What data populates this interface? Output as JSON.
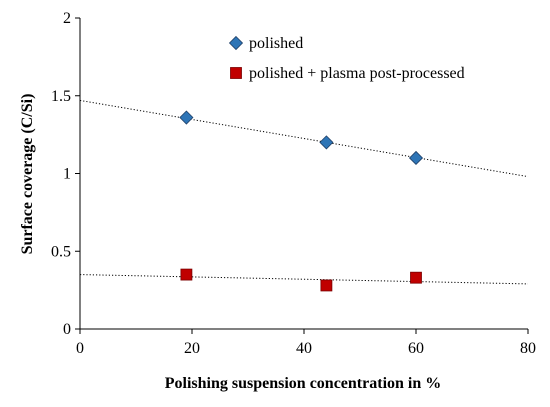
{
  "chart_data": {
    "type": "scatter",
    "xlabel": "Polishing suspension concentration in %",
    "ylabel": "Surface coverage (C/Si)",
    "xlim": [
      0,
      80
    ],
    "ylim": [
      0,
      2
    ],
    "xticks": [
      0,
      20,
      40,
      60,
      80
    ],
    "yticks": [
      0,
      0.5,
      1,
      1.5,
      2
    ],
    "xtick_labels": [
      "0",
      "20",
      "40",
      "60",
      "80"
    ],
    "ytick_labels": [
      "0",
      "0.5",
      "1",
      "1.5",
      "2"
    ],
    "grid": false,
    "legend_position": "top-right",
    "series": [
      {
        "name": "polished",
        "marker": "diamond",
        "color": "#2e75b6",
        "x": [
          19,
          44,
          60
        ],
        "y": [
          1.36,
          1.2,
          1.1
        ],
        "trendline": {
          "style": "dotted",
          "x": [
            0,
            80
          ],
          "y": [
            1.47,
            0.98
          ]
        }
      },
      {
        "name": "polished + plasma post-processed",
        "marker": "square",
        "color": "#c00000",
        "x": [
          19,
          44,
          60
        ],
        "y": [
          0.35,
          0.28,
          0.33
        ],
        "trendline": {
          "style": "dotted",
          "x": [
            0,
            80
          ],
          "y": [
            0.35,
            0.29
          ]
        }
      }
    ]
  }
}
